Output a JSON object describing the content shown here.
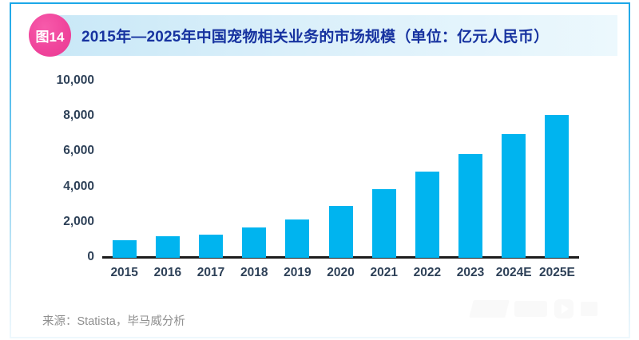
{
  "figure": {
    "badge": "图14",
    "title": "2015年—2025年中国宠物相关业务的市场规模（单位：亿元人民币）",
    "source": "来源：Statista，毕马威分析"
  },
  "colors": {
    "bar": "#00b4ef",
    "badge_bg": "#f0459c",
    "title_text": "#1733a0",
    "axis_label": "#2e4158",
    "axis_line": "#1c1c1c",
    "border_top": "#1ba7e8",
    "banner_from": "#c9e8f7",
    "banner_to": "#ecf8fd",
    "source_text": "#8f8f8f"
  },
  "chart_data": {
    "type": "bar",
    "title": "2015年—2025年中国宠物相关业务的市场规模",
    "unit": "亿元人民币",
    "categories": [
      "2015",
      "2016",
      "2017",
      "2018",
      "2019",
      "2020",
      "2021",
      "2022",
      "2023",
      "2024E",
      "2025E"
    ],
    "values": [
      980,
      1210,
      1330,
      1730,
      2150,
      2920,
      3870,
      4880,
      5890,
      7000,
      8100
    ],
    "xlabel": "",
    "ylabel": "",
    "ylim": [
      0,
      10000
    ],
    "yticks": [
      0,
      2000,
      4000,
      6000,
      8000,
      10000
    ],
    "grid": false,
    "legend": "none"
  }
}
